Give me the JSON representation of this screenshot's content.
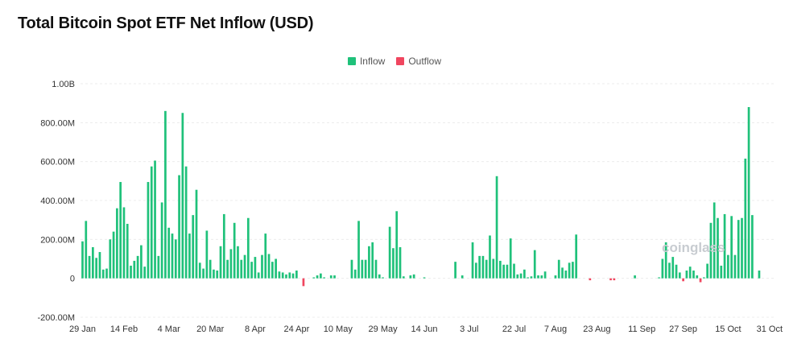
{
  "title": "Total Bitcoin Spot ETF Net Inflow (USD)",
  "legend": [
    {
      "label": "Inflow",
      "color": "#1fc17a"
    },
    {
      "label": "Outflow",
      "color": "#f0465f"
    }
  ],
  "watermark": "coinglass",
  "chart_data": {
    "type": "bar",
    "title": "Total Bitcoin Spot ETF Net Inflow (USD)",
    "xlabel": "",
    "ylabel": "",
    "ylim": [
      -200,
      1000
    ],
    "y_ticks": [
      {
        "value": 1000,
        "label": "1.00B"
      },
      {
        "value": 800,
        "label": "800.00M"
      },
      {
        "value": 600,
        "label": "600.00M"
      },
      {
        "value": 400,
        "label": "400.00M"
      },
      {
        "value": 200,
        "label": "200.00M"
      },
      {
        "value": 0,
        "label": "0"
      },
      {
        "value": -200,
        "label": "-200.00M"
      }
    ],
    "x_ticks": [
      {
        "index": 0,
        "label": "29 Jan"
      },
      {
        "index": 12,
        "label": "14 Feb"
      },
      {
        "index": 25,
        "label": "4 Mar"
      },
      {
        "index": 37,
        "label": "20 Mar"
      },
      {
        "index": 50,
        "label": "8 Apr"
      },
      {
        "index": 62,
        "label": "24 Apr"
      },
      {
        "index": 74,
        "label": "10 May"
      },
      {
        "index": 87,
        "label": "29 May"
      },
      {
        "index": 99,
        "label": "14 Jun"
      },
      {
        "index": 112,
        "label": "3 Jul"
      },
      {
        "index": 125,
        "label": "22 Jul"
      },
      {
        "index": 137,
        "label": "7 Aug"
      },
      {
        "index": 149,
        "label": "23 Aug"
      },
      {
        "index": 162,
        "label": "11 Sep"
      },
      {
        "index": 174,
        "label": "27 Sep"
      },
      {
        "index": 187,
        "label": "15 Oct"
      },
      {
        "index": 199,
        "label": "31 Oct"
      }
    ],
    "series": [
      {
        "name": "Net Inflow",
        "values": [
          190,
          295,
          115,
          160,
          105,
          135,
          45,
          50,
          200,
          240,
          360,
          495,
          365,
          280,
          65,
          90,
          115,
          170,
          60,
          495,
          575,
          605,
          115,
          390,
          860,
          260,
          230,
          200,
          530,
          850,
          575,
          230,
          325,
          455,
          80,
          50,
          245,
          95,
          45,
          40,
          165,
          330,
          95,
          150,
          285,
          165,
          95,
          120,
          310,
          85,
          110,
          30,
          120,
          230,
          125,
          85,
          100,
          35,
          30,
          20,
          30,
          25,
          40,
          0,
          -40,
          0,
          0,
          5,
          15,
          25,
          5,
          0,
          15,
          15,
          0,
          0,
          0,
          0,
          95,
          45,
          295,
          95,
          95,
          165,
          185,
          95,
          20,
          5,
          0,
          265,
          155,
          345,
          160,
          10,
          0,
          15,
          20,
          0,
          0,
          5,
          0,
          0,
          0,
          0,
          0,
          0,
          0,
          0,
          85,
          0,
          15,
          0,
          0,
          185,
          80,
          115,
          115,
          95,
          220,
          100,
          525,
          90,
          70,
          70,
          205,
          75,
          20,
          25,
          45,
          5,
          10,
          145,
          15,
          15,
          35,
          0,
          0,
          15,
          95,
          55,
          40,
          80,
          85,
          225,
          0,
          0,
          0,
          -10,
          0,
          0,
          0,
          0,
          0,
          -10,
          -10,
          0,
          0,
          0,
          0,
          0,
          15,
          0,
          0,
          0,
          0,
          0,
          0,
          5,
          100,
          185,
          80,
          110,
          70,
          30,
          -15,
          40,
          60,
          40,
          15,
          -20,
          5,
          75,
          285,
          390,
          310,
          65,
          330,
          120,
          320,
          120,
          300,
          310,
          615,
          880,
          325,
          0,
          40
        ]
      }
    ]
  }
}
